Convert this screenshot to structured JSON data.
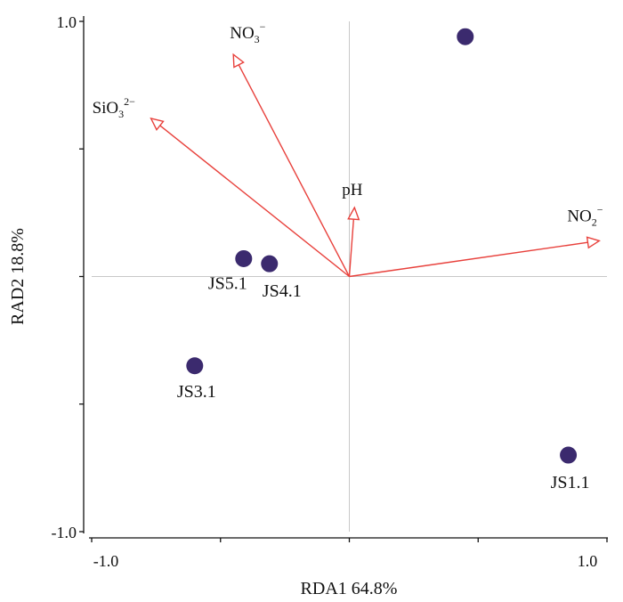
{
  "chart_data": {
    "type": "scatter",
    "subtype": "rda-biplot",
    "xlabel": "RDA1  64.8%",
    "ylabel": "RAD2  18.8%",
    "xlim": [
      -1.0,
      1.0
    ],
    "ylim": [
      -1.0,
      1.0
    ],
    "x_ticks": [
      -1.0,
      -0.5,
      0,
      0.5,
      1.0
    ],
    "y_ticks": [
      -1.0,
      -0.5,
      0,
      0.5,
      1.0
    ],
    "x_tick_labels": [
      "-1.0",
      "1.0"
    ],
    "y_tick_labels": [
      "1.0",
      "-1.0"
    ],
    "origin_lines": true,
    "colors": {
      "point": "#3b2a6e",
      "arrow": "#e8413c",
      "origin_line": "#c8c8c8",
      "axis": "#111111"
    },
    "sites": [
      {
        "label": "",
        "x": 0.45,
        "y": 0.94
      },
      {
        "label": "JS5.1",
        "x": -0.41,
        "y": 0.07
      },
      {
        "label": "JS4.1",
        "x": -0.31,
        "y": 0.05
      },
      {
        "label": "JS3.1",
        "x": -0.6,
        "y": -0.35
      },
      {
        "label": "JS1.1",
        "x": 0.85,
        "y": -0.7
      }
    ],
    "env_vectors": [
      {
        "name": "NO3",
        "charge": "−",
        "x": -0.45,
        "y": 0.87
      },
      {
        "name": "SiO3",
        "charge": "2−",
        "x": -0.77,
        "y": 0.62
      },
      {
        "name": "pH",
        "charge": "",
        "x": 0.02,
        "y": 0.27
      },
      {
        "name": "NO2",
        "charge": "−",
        "x": 0.97,
        "y": 0.14
      }
    ]
  }
}
